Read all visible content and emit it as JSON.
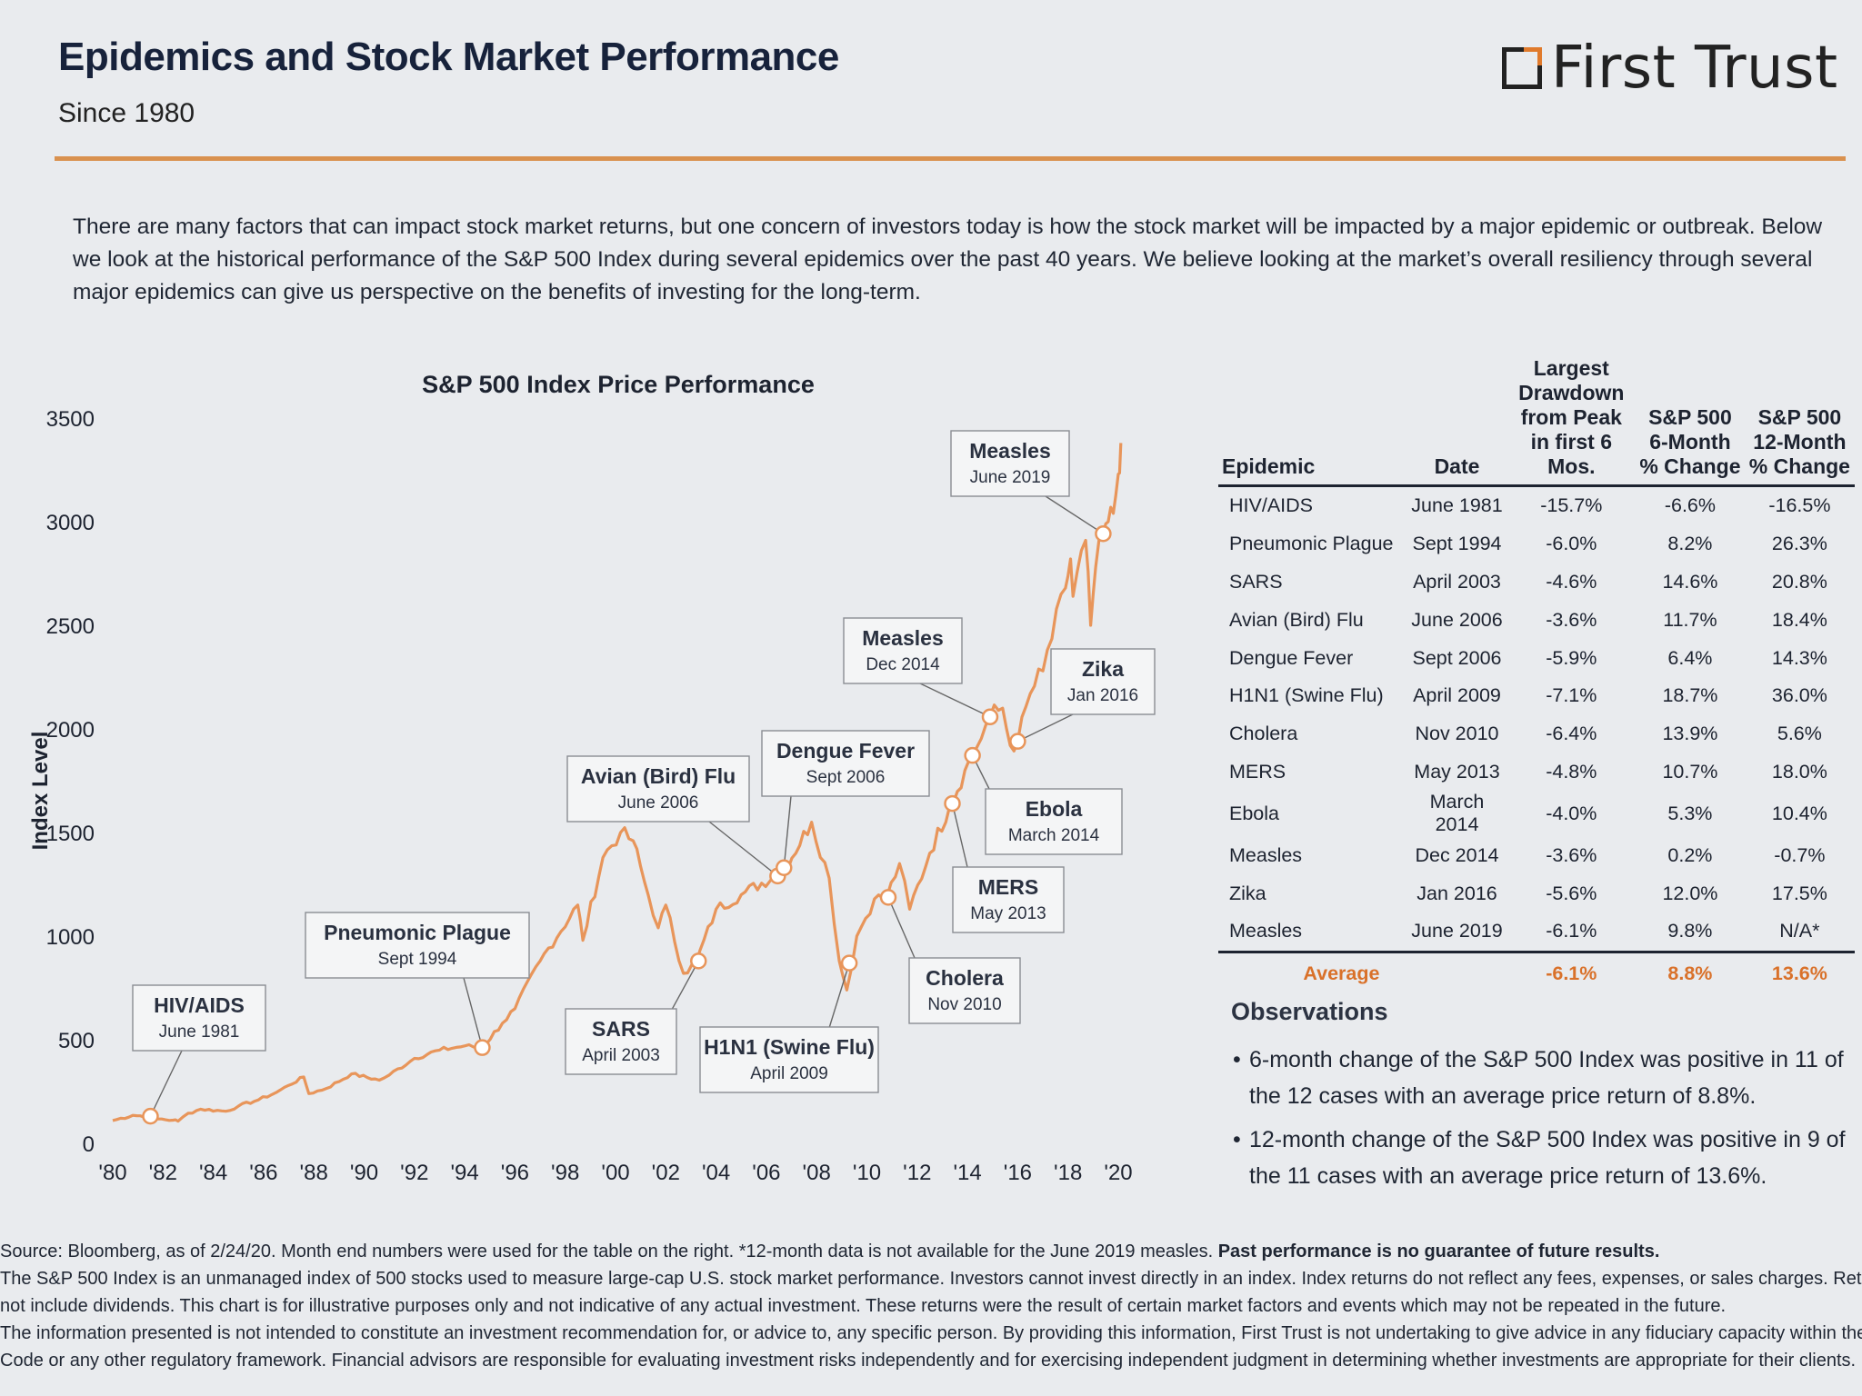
{
  "header": {
    "title": "Epidemics and Stock Market Performance",
    "subtitle": "Since 1980",
    "brand": "First Trust"
  },
  "intro": "There are many factors that can impact stock market returns, but one concern of investors today is how the stock market will be impacted by a major epidemic or outbreak. Below we look at the historical performance of the S&P 500 Index during several epidemics over the past 40 years. We believe looking at the market’s overall resiliency through several major epidemics can give us perspective on the benefits of investing for the long-term.",
  "chart_data": {
    "type": "line",
    "title": "S&P 500 Index Price Performance",
    "ylabel": "Index Level",
    "xlabel": "",
    "ylim": [
      0,
      3500
    ],
    "xlim": [
      1980,
      2020.3
    ],
    "yticks": [
      "3500",
      "3000",
      "2500",
      "2000",
      "1500",
      "1000",
      "500",
      "0"
    ],
    "xticks": [
      "'80",
      "'82",
      "'84",
      "'86",
      "'88",
      "'90",
      "'92",
      "'94",
      "'96",
      "'98",
      "'00",
      "'02",
      "'04",
      "'06",
      "'08",
      "'10",
      "'12",
      "'14",
      "'16",
      "'18",
      "'20"
    ],
    "grid": false,
    "line_color": "#e8955a",
    "series": [
      {
        "points": [
          [
            1980.0,
            110
          ],
          [
            1980.8,
            135
          ],
          [
            1981.4,
            131
          ],
          [
            1981.8,
            118
          ],
          [
            1982.4,
            112
          ],
          [
            1982.6,
            107
          ],
          [
            1983.0,
            145
          ],
          [
            1983.5,
            165
          ],
          [
            1984.5,
            155
          ],
          [
            1985.0,
            180
          ],
          [
            1985.8,
            210
          ],
          [
            1986.5,
            245
          ],
          [
            1987.0,
            280
          ],
          [
            1987.6,
            320
          ],
          [
            1987.8,
            240
          ],
          [
            1988.5,
            265
          ],
          [
            1989.5,
            335
          ],
          [
            1990.6,
            305
          ],
          [
            1991.0,
            330
          ],
          [
            1992.0,
            410
          ],
          [
            1993.0,
            450
          ],
          [
            1994.0,
            470
          ],
          [
            1994.7,
            462
          ],
          [
            1995.5,
            580
          ],
          [
            1996.0,
            650
          ],
          [
            1997.0,
            880
          ],
          [
            1998.5,
            1150
          ],
          [
            1998.7,
            980
          ],
          [
            1999.5,
            1380
          ],
          [
            2000.2,
            1500
          ],
          [
            2000.7,
            1460
          ],
          [
            2001.3,
            1200
          ],
          [
            2001.7,
            1040
          ],
          [
            2002.0,
            1150
          ],
          [
            2002.7,
            820
          ],
          [
            2003.2,
            870
          ],
          [
            2004.0,
            1130
          ],
          [
            2005.0,
            1200
          ],
          [
            2006.3,
            1290
          ],
          [
            2006.7,
            1320
          ],
          [
            2007.8,
            1550
          ],
          [
            2008.5,
            1280
          ],
          [
            2008.9,
            880
          ],
          [
            2009.2,
            740
          ],
          [
            2009.6,
            1000
          ],
          [
            2010.3,
            1180
          ],
          [
            2010.8,
            1190
          ],
          [
            2011.3,
            1350
          ],
          [
            2011.7,
            1130
          ],
          [
            2012.5,
            1400
          ],
          [
            2013.3,
            1630
          ],
          [
            2013.9,
            1800
          ],
          [
            2014.2,
            1870
          ],
          [
            2014.9,
            2060
          ],
          [
            2015.4,
            2100
          ],
          [
            2015.7,
            1920
          ],
          [
            2016.0,
            1940
          ],
          [
            2016.5,
            2170
          ],
          [
            2017.0,
            2280
          ],
          [
            2017.9,
            2680
          ],
          [
            2018.1,
            2820
          ],
          [
            2018.2,
            2640
          ],
          [
            2018.7,
            2910
          ],
          [
            2018.9,
            2500
          ],
          [
            2019.1,
            2780
          ],
          [
            2019.4,
            2940
          ],
          [
            2019.6,
            3000
          ],
          [
            2019.8,
            3040
          ],
          [
            2020.0,
            3230
          ],
          [
            2020.1,
            3380
          ]
        ]
      }
    ],
    "markers": [
      {
        "x": 1981.5,
        "y": 131
      },
      {
        "x": 1994.7,
        "y": 462
      },
      {
        "x": 2003.3,
        "y": 880
      },
      {
        "x": 2006.45,
        "y": 1290
      },
      {
        "x": 2006.7,
        "y": 1330
      },
      {
        "x": 2009.3,
        "y": 870
      },
      {
        "x": 2010.85,
        "y": 1187
      },
      {
        "x": 2013.4,
        "y": 1640
      },
      {
        "x": 2014.2,
        "y": 1872
      },
      {
        "x": 2014.9,
        "y": 2058
      },
      {
        "x": 2016.0,
        "y": 1940
      },
      {
        "x": 2019.4,
        "y": 2942
      }
    ],
    "annotations": [
      {
        "name": "HIV/AIDS",
        "date": "June 1981"
      },
      {
        "name": "Pneumonic Plague",
        "date": "Sept 1994"
      },
      {
        "name": "SARS",
        "date": "April 2003"
      },
      {
        "name": "Avian (Bird) Flu",
        "date": "June 2006"
      },
      {
        "name": "Dengue Fever",
        "date": "Sept 2006"
      },
      {
        "name": "H1N1 (Swine Flu)",
        "date": "April 2009"
      },
      {
        "name": "Cholera",
        "date": "Nov 2010"
      },
      {
        "name": "MERS",
        "date": "May 2013"
      },
      {
        "name": "Ebola",
        "date": "March 2014"
      },
      {
        "name": "Measles",
        "date": "Dec 2014"
      },
      {
        "name": "Zika",
        "date": "Jan 2016"
      },
      {
        "name": "Measles",
        "date": "June 2019"
      }
    ]
  },
  "table": {
    "headers": [
      "Epidemic",
      "Date",
      "Largest\nDrawdown\nfrom Peak\nin first 6 Mos.",
      "S&P 500\n6-Month\n% Change",
      "S&P 500\n12-Month\n% Change"
    ],
    "rows": [
      [
        "HIV/AIDS",
        "June 1981",
        "-15.7%",
        "-6.6%",
        "-16.5%"
      ],
      [
        "Pneumonic Plague",
        "Sept 1994",
        "-6.0%",
        "8.2%",
        "26.3%"
      ],
      [
        "SARS",
        "April 2003",
        "-4.6%",
        "14.6%",
        "20.8%"
      ],
      [
        "Avian (Bird) Flu",
        "June 2006",
        "-3.6%",
        "11.7%",
        "18.4%"
      ],
      [
        "Dengue Fever",
        "Sept 2006",
        "-5.9%",
        "6.4%",
        "14.3%"
      ],
      [
        "H1N1 (Swine Flu)",
        "April 2009",
        "-7.1%",
        "18.7%",
        "36.0%"
      ],
      [
        "Cholera",
        "Nov 2010",
        "-6.4%",
        "13.9%",
        "5.6%"
      ],
      [
        "MERS",
        "May 2013",
        "-4.8%",
        "10.7%",
        "18.0%"
      ],
      [
        "Ebola",
        "March 2014",
        "-4.0%",
        "5.3%",
        "10.4%"
      ],
      [
        "Measles",
        "Dec 2014",
        "-3.6%",
        "0.2%",
        "-0.7%"
      ],
      [
        "Zika",
        "Jan 2016",
        "-5.6%",
        "12.0%",
        "17.5%"
      ],
      [
        "Measles",
        "June 2019",
        "-6.1%",
        "9.8%",
        "N/A*"
      ]
    ],
    "average": [
      "Average",
      "",
      "-6.1%",
      "8.8%",
      "13.6%"
    ]
  },
  "observations": {
    "title": "Observations",
    "items": [
      "6-month change of the S&P 500 Index was positive in 11 of the 12 cases with an average price return of 8.8%.",
      "12-month change of the S&P 500 Index was positive in 9 of the 11 cases with an average price return of 13.6%."
    ]
  },
  "footnotes": {
    "source": "Source: Bloomberg, as of 2/24/20. Month end numbers were used for the table on the right. *12-month data is not available for the June 2019 measles.",
    "source_bold": "Past performance is no guarantee of future results.",
    "line2": "The S&P 500 Index is an unmanaged index of 500 stocks used to measure large-cap U.S. stock market performance. Investors cannot invest directly in an index. Index returns do not reflect any fees, expenses, or sales charges. Returns are based on price only",
    "line3": "not include dividends. This chart is for illustrative purposes only and not indicative of any actual investment. These returns were the result of certain market factors and events which may not be repeated in the future.",
    "line4": "The information presented is not intended to constitute an investment recommendation for, or advice to, any specific person. By providing this information, First Trust is not undertaking to give advice in any fiduciary capacity within the meaning of ERISA, the Internal",
    "line5": "Code or any other regulatory framework. Financial advisors are responsible for evaluating investment risks independently and for exercising independent judgment in determining whether investments are appropriate for their clients."
  }
}
